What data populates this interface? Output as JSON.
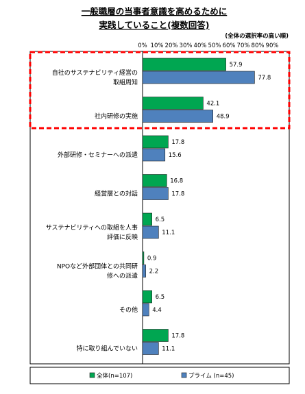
{
  "chart_data": {
    "type": "bar",
    "orientation": "horizontal",
    "title": [
      "一般職層の当事者意識を高めるために",
      "実践していること(複数回答)"
    ],
    "note": "(全体の選択率の高い順)",
    "xlim": [
      0,
      90
    ],
    "x_ticks": [
      "0%",
      "10%",
      "20%",
      "30%",
      "40%",
      "50%",
      "60%",
      "70%",
      "80%",
      "90%"
    ],
    "categories": [
      [
        "自社のサステナビリティ経営の",
        "取組周知"
      ],
      [
        "社内研修の実施"
      ],
      [
        "外部研修・セミナーへの派遣"
      ],
      [
        "経営層との対話"
      ],
      [
        "サステナビリティへの取組を人事",
        "評価に反映"
      ],
      [
        "NPOなど外部団体との共同研",
        "修への派遣"
      ],
      [
        "その他"
      ],
      [
        "特に取り組んでいない"
      ]
    ],
    "series": [
      {
        "name": "全体(n=107)",
        "color": "#00a651",
        "values": [
          57.9,
          42.1,
          17.8,
          16.8,
          6.5,
          0.9,
          6.5,
          17.8
        ]
      },
      {
        "name": "プライム (n=45)",
        "color": "#4f81bd",
        "values": [
          77.8,
          48.9,
          15.6,
          17.8,
          11.1,
          2.2,
          4.4,
          11.1
        ]
      }
    ],
    "highlight": "first two categories boxed with red dashed border",
    "legend_position": "bottom",
    "grid": false
  }
}
